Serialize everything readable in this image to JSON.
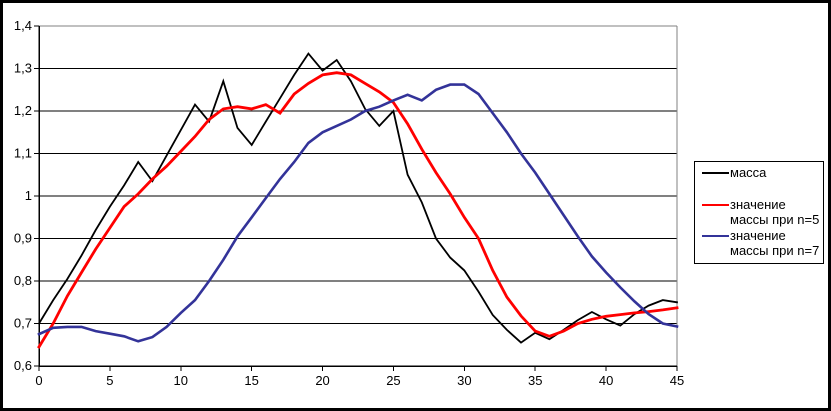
{
  "chart_data": {
    "type": "line",
    "title": "",
    "xlabel": "",
    "ylabel": "",
    "xlim": [
      0,
      45
    ],
    "ylim": [
      0.6,
      1.4
    ],
    "grid": "horizontal",
    "legend_position": "right",
    "x_ticks": [
      0,
      5,
      10,
      15,
      20,
      25,
      30,
      35,
      40,
      45
    ],
    "x_tick_labels": [
      "0",
      "5",
      "10",
      "15",
      "20",
      "25",
      "30",
      "35",
      "40",
      "45"
    ],
    "y_ticks": [
      0.6,
      0.7,
      0.8,
      0.9,
      1.0,
      1.1,
      1.2,
      1.3,
      1.4
    ],
    "y_tick_labels": [
      "0,6",
      "0,7",
      "0,8",
      "0,9",
      "1",
      "1,1",
      "1,2",
      "1,3",
      "1,4"
    ],
    "x": [
      0,
      1,
      2,
      3,
      4,
      5,
      6,
      7,
      8,
      9,
      10,
      11,
      12,
      13,
      14,
      15,
      16,
      17,
      18,
      19,
      20,
      21,
      22,
      23,
      24,
      25,
      26,
      27,
      28,
      29,
      30,
      31,
      32,
      33,
      34,
      35,
      36,
      37,
      38,
      39,
      40,
      41,
      42,
      43,
      44,
      45
    ],
    "series": [
      {
        "name": "масса",
        "color": "#000000",
        "stroke_width": 1.8,
        "values": [
          0.7,
          0.755,
          0.805,
          0.86,
          0.92,
          0.975,
          1.025,
          1.08,
          1.035,
          1.095,
          1.155,
          1.215,
          1.175,
          1.27,
          1.16,
          1.12,
          1.175,
          1.23,
          1.285,
          1.335,
          1.295,
          1.32,
          1.27,
          1.205,
          1.165,
          1.2,
          1.05,
          0.985,
          0.9,
          0.855,
          0.825,
          0.775,
          0.72,
          0.685,
          0.655,
          0.678,
          0.663,
          0.685,
          0.708,
          0.727,
          0.71,
          0.695,
          0.722,
          0.742,
          0.755,
          0.75
        ]
      },
      {
        "name": "значение массы при n=5",
        "color": "#FF0000",
        "stroke_width": 2.8,
        "values": [
          0.645,
          0.7,
          0.765,
          0.82,
          0.875,
          0.925,
          0.975,
          1.005,
          1.04,
          1.07,
          1.105,
          1.14,
          1.18,
          1.205,
          1.21,
          1.205,
          1.215,
          1.195,
          1.24,
          1.265,
          1.285,
          1.29,
          1.285,
          1.265,
          1.245,
          1.22,
          1.17,
          1.11,
          1.055,
          1.005,
          0.95,
          0.9,
          0.825,
          0.762,
          0.718,
          0.682,
          0.67,
          0.682,
          0.7,
          0.71,
          0.717,
          0.721,
          0.725,
          0.728,
          0.732,
          0.737
        ]
      },
      {
        "name": "значение массы при n=7",
        "color": "#333399",
        "stroke_width": 2.6,
        "values": [
          0.675,
          0.69,
          0.692,
          0.692,
          0.682,
          0.676,
          0.67,
          0.658,
          0.668,
          0.692,
          0.725,
          0.755,
          0.8,
          0.85,
          0.905,
          0.95,
          0.995,
          1.04,
          1.08,
          1.125,
          1.15,
          1.165,
          1.18,
          1.2,
          1.21,
          1.225,
          1.238,
          1.225,
          1.25,
          1.262,
          1.262,
          1.24,
          1.195,
          1.15,
          1.1,
          1.055,
          1.005,
          0.955,
          0.905,
          0.858,
          0.82,
          0.785,
          0.752,
          0.722,
          0.7,
          0.693
        ]
      }
    ],
    "colors": {
      "axis": "#000000",
      "plot_border": "#808080",
      "background": "#ffffff",
      "outer_border": "#000000"
    }
  }
}
